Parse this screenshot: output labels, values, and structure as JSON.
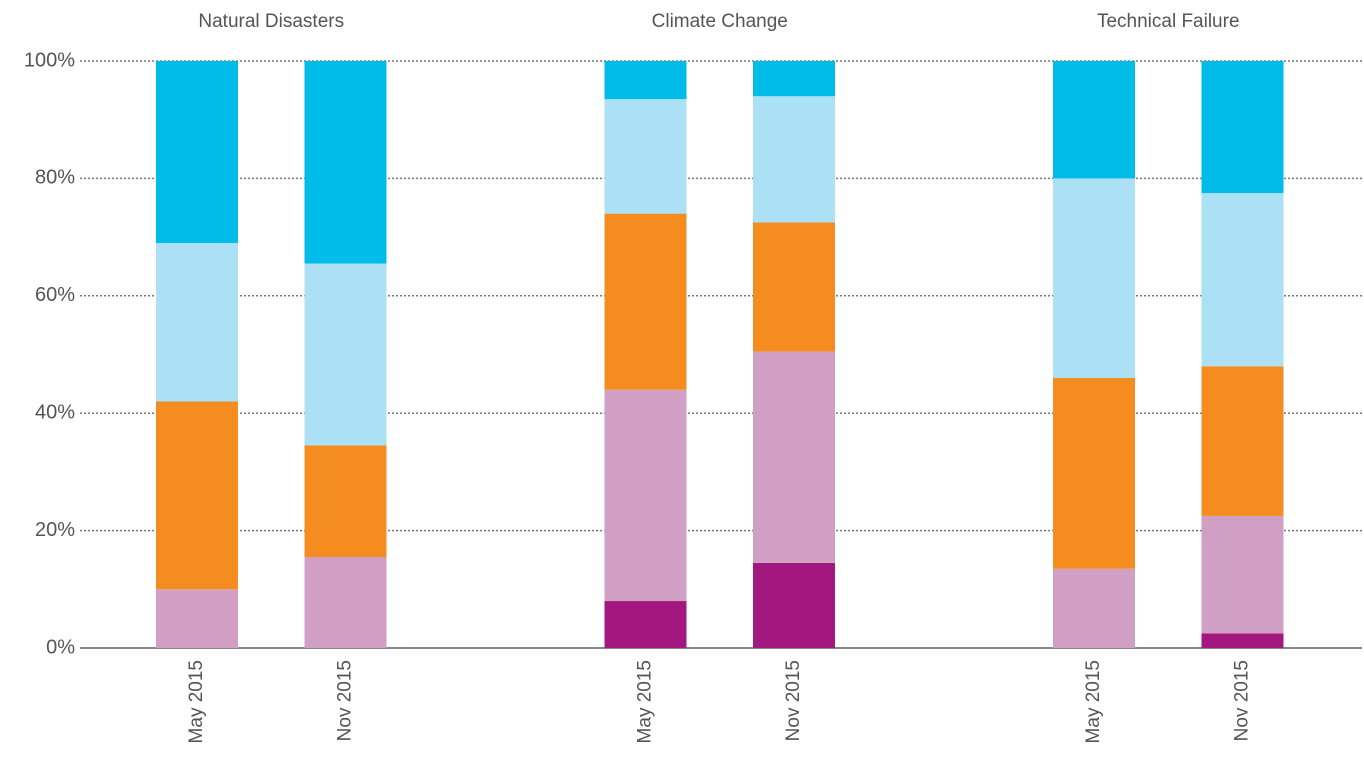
{
  "chart_data": {
    "type": "stacked_bar",
    "groups": [
      "Natural Disasters",
      "Climate Change",
      "Technical Failure"
    ],
    "categories": [
      "May 2015",
      "Nov 2015",
      "May 2015",
      "Nov 2015",
      "May 2015",
      "Nov 2015"
    ],
    "series": [
      {
        "color": "#a3187f",
        "values": [
          0,
          0,
          8,
          14.5,
          0,
          2.5
        ]
      },
      {
        "color": "#d19ec4",
        "values": [
          10,
          15.5,
          36,
          36,
          13.5,
          20
        ]
      },
      {
        "color": "#f58c1f",
        "values": [
          32,
          19,
          30,
          22,
          32.5,
          25.5
        ]
      },
      {
        "color": "#abe0f5",
        "values": [
          27,
          31,
          19.5,
          21.5,
          34,
          29.5
        ]
      },
      {
        "color": "#00bce8",
        "values": [
          31,
          34.5,
          6.5,
          6,
          20,
          22.5
        ]
      }
    ],
    "ylim": [
      0,
      100
    ],
    "yticks": [
      {
        "value": 0,
        "label": "0%"
      },
      {
        "value": 20,
        "label": "20%"
      },
      {
        "value": 40,
        "label": "40%"
      },
      {
        "value": 60,
        "label": "60%"
      },
      {
        "value": 80,
        "label": "80%"
      },
      {
        "value": 100,
        "label": "100%"
      }
    ],
    "grid": true
  }
}
